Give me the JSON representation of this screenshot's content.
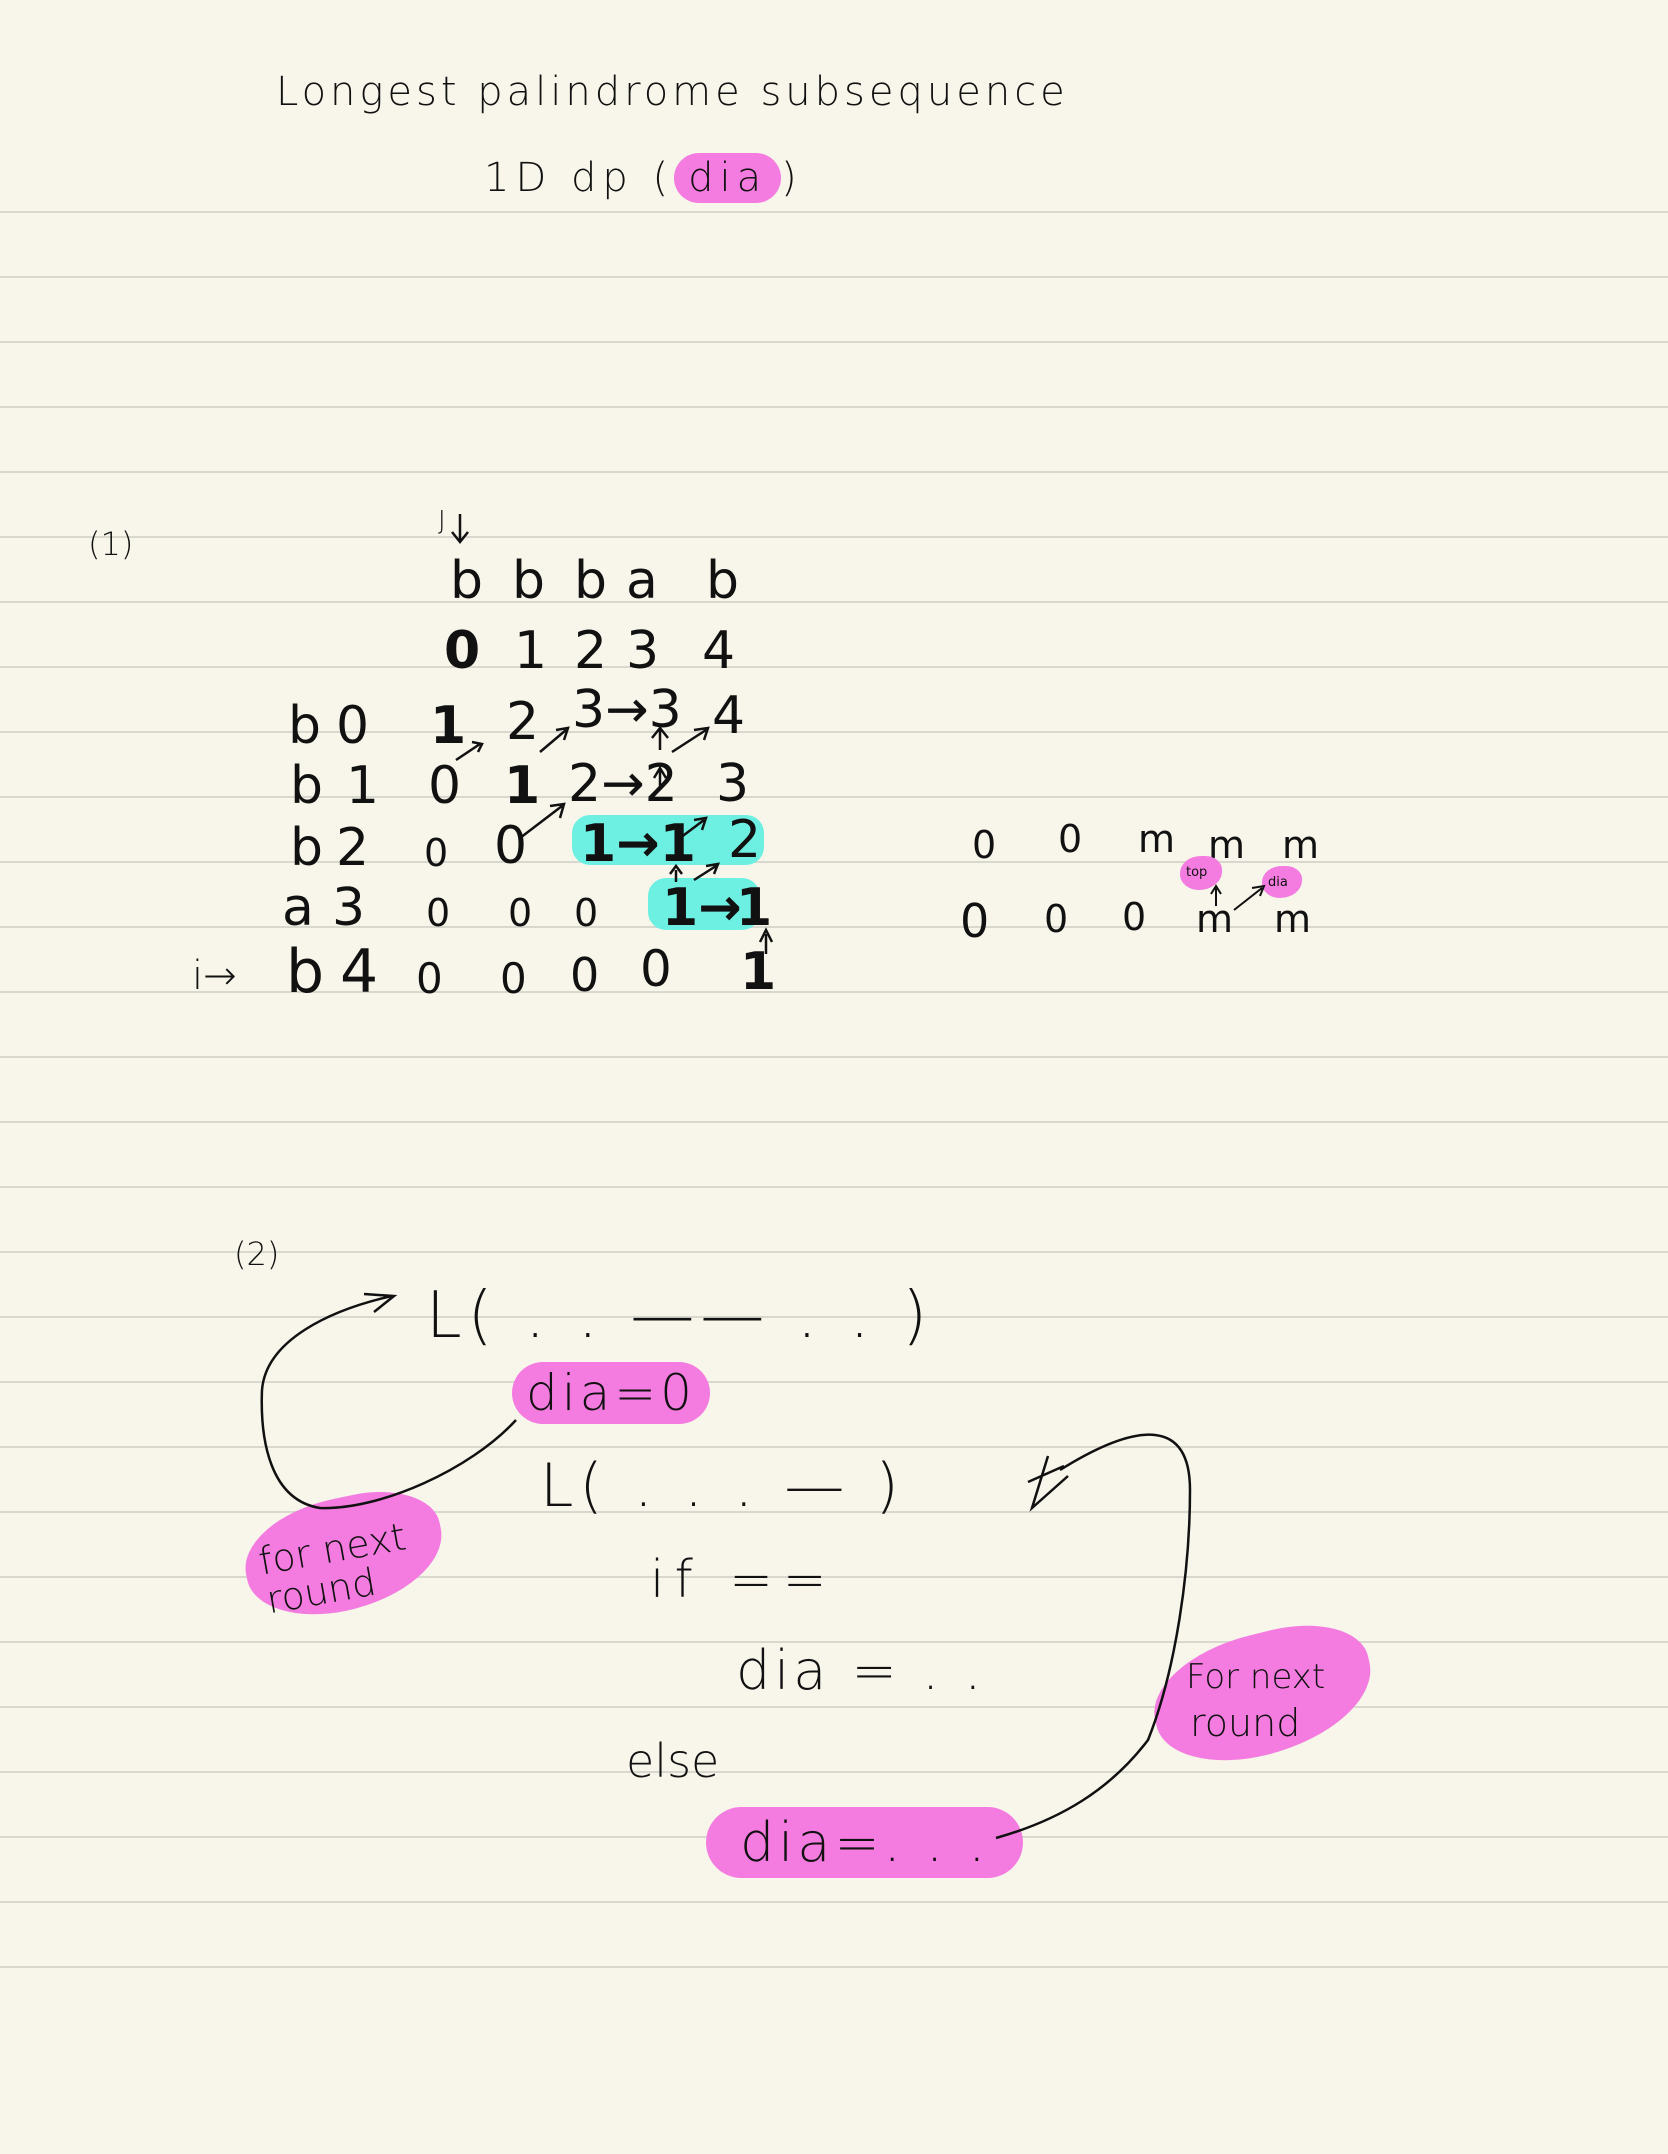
{
  "title": "Longest palindrome subsequence",
  "subtitle_prefix": "1D dp (",
  "subtitle_highlight": "dia",
  "subtitle_suffix": ")",
  "section1_label": "(1)",
  "j_marker": "J",
  "i_marker": "i→",
  "string_chars": [
    "b",
    "b",
    "b",
    "a",
    "b"
  ],
  "col_indices": [
    "0",
    "1",
    "2",
    "3",
    "4"
  ],
  "rows": [
    {
      "char": "b",
      "index": "0",
      "cells": [
        "1",
        "2",
        "3→3",
        "",
        "4"
      ]
    },
    {
      "char": "b",
      "index": "1",
      "cells": [
        "0",
        "1",
        "2→2",
        "",
        "3"
      ]
    },
    {
      "char": "b",
      "index": "2",
      "cells": [
        "0",
        "0",
        "1→1",
        "",
        "2"
      ]
    },
    {
      "char": "a",
      "index": "3",
      "cells": [
        "0",
        "0",
        "0",
        "1→",
        "1"
      ]
    },
    {
      "char": "b",
      "index": "4",
      "cells": [
        "0",
        "0",
        "0",
        "0",
        "1"
      ]
    }
  ],
  "side_row1": [
    "0",
    "0",
    "m",
    "m",
    "m"
  ],
  "side_row2": [
    "0",
    "0",
    "0",
    "m",
    "m"
  ],
  "side_top_label": "top",
  "side_dia_label": "dia",
  "section2_label": "(2)",
  "loop1": "L( . .  ——  . .   )",
  "dia_init": "dia=0",
  "loop2": "L( . . . —  )",
  "if_line": "if ==",
  "dia_assign1": "dia = . .",
  "else_line": "else",
  "dia_assign2": "dia=. . .",
  "for_next_round_left": [
    "for next",
    "round"
  ],
  "for_next_round_right": [
    "For next",
    "round"
  ],
  "colors": {
    "paper": "#f8f6ea",
    "rule": "#d9d8cf",
    "pink": "#f47ce0",
    "cyan": "#6df0e2",
    "ink": "#111111"
  }
}
